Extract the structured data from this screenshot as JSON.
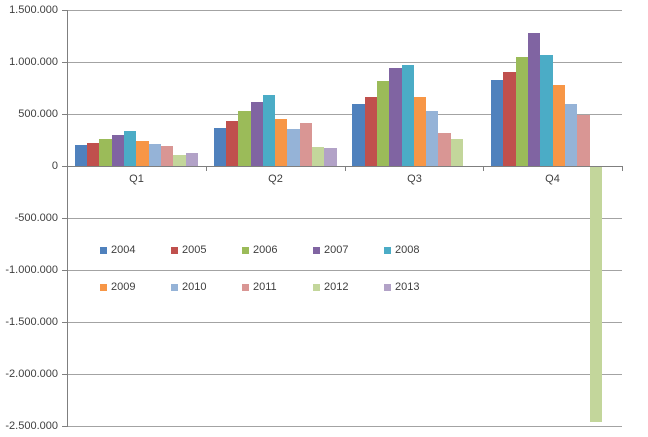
{
  "chart_data": {
    "type": "bar",
    "title": "",
    "categories": [
      "Q1",
      "Q2",
      "Q3",
      "Q4"
    ],
    "series": [
      {
        "name": "2004",
        "color": "#4F81BD",
        "values": [
          200000,
          370000,
          600000,
          825000
        ]
      },
      {
        "name": "2005",
        "color": "#C0504D",
        "values": [
          220000,
          430000,
          665000,
          900000
        ]
      },
      {
        "name": "2006",
        "color": "#9BBB59",
        "values": [
          260000,
          530000,
          820000,
          1045000
        ]
      },
      {
        "name": "2007",
        "color": "#8064A2",
        "values": [
          300000,
          620000,
          945000,
          1280000
        ]
      },
      {
        "name": "2008",
        "color": "#4BACC6",
        "values": [
          340000,
          680000,
          975000,
          1065000
        ]
      },
      {
        "name": "2009",
        "color": "#F79646",
        "values": [
          240000,
          450000,
          660000,
          780000
        ]
      },
      {
        "name": "2010",
        "color": "#95B3D7",
        "values": [
          215000,
          360000,
          530000,
          600000
        ]
      },
      {
        "name": "2011",
        "color": "#D99694",
        "values": [
          190000,
          415000,
          315000,
          490000
        ]
      },
      {
        "name": "2012",
        "color": "#C3D69B",
        "values": [
          105000,
          185000,
          255000,
          -2450000
        ]
      },
      {
        "name": "2013",
        "color": "#B2A2C7",
        "values": [
          125000,
          170000,
          0,
          0
        ]
      }
    ],
    "y_axis": {
      "min": -2500000,
      "max": 1500000,
      "step": 500000,
      "tick_labels": [
        "1.500.000",
        "1.000.000",
        "500.000",
        "0",
        "-500.000",
        "-1.000.000",
        "-1.500.000",
        "-2.000.000",
        "-2.500.000"
      ]
    },
    "x_axis": {
      "tick_labels": [
        "Q1",
        "Q2",
        "Q3",
        "Q4"
      ]
    },
    "legend": {
      "position": "inside-plot-left-middle",
      "rows": [
        [
          "2004",
          "2005",
          "2006",
          "2007",
          "2008"
        ],
        [
          "2009",
          "2010",
          "2011",
          "2012",
          "2013"
        ]
      ]
    },
    "grid": true,
    "styles": {
      "background": "#FFFFFF",
      "gridline_color": "#A3A3A3",
      "axis_color": "#7F7F7F",
      "text_color": "#3F3F3F"
    }
  }
}
